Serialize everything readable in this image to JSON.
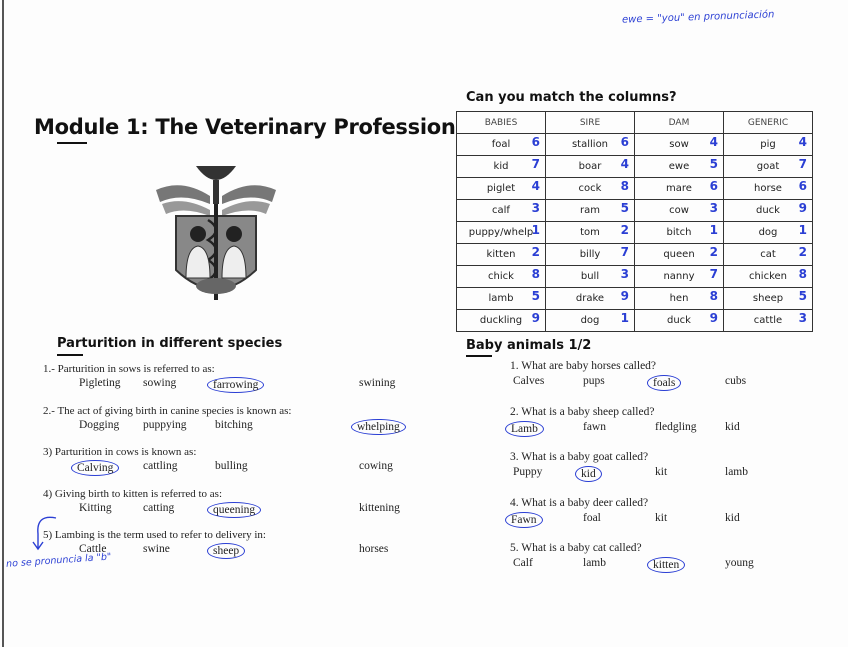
{
  "note": "ewe = \"you\" en pronunciación",
  "header": {
    "title": "Module 1: The Veterinary Profession"
  },
  "matching": {
    "title": "Can you match the columns?",
    "headers": [
      "BABIES",
      "SIRE",
      "DAM",
      "GENERIC"
    ],
    "rows": [
      [
        {
          "word": "foal",
          "mark": 6
        },
        {
          "word": "stallion",
          "mark": 6
        },
        {
          "word": "sow",
          "mark": 4
        },
        {
          "word": "pig",
          "mark": 4
        }
      ],
      [
        {
          "word": "kid",
          "mark": 7
        },
        {
          "word": "boar",
          "mark": 4
        },
        {
          "word": "ewe",
          "mark": 5
        },
        {
          "word": "goat",
          "mark": 7
        }
      ],
      [
        {
          "word": "piglet",
          "mark": 4
        },
        {
          "word": "cock",
          "mark": 8
        },
        {
          "word": "mare",
          "mark": 6
        },
        {
          "word": "horse",
          "mark": 6
        }
      ],
      [
        {
          "word": "calf",
          "mark": 3
        },
        {
          "word": "ram",
          "mark": 5
        },
        {
          "word": "cow",
          "mark": 3
        },
        {
          "word": "duck",
          "mark": 9
        }
      ],
      [
        {
          "word": "puppy/whelp",
          "mark": 1
        },
        {
          "word": "tom",
          "mark": 2
        },
        {
          "word": "bitch",
          "mark": 1
        },
        {
          "word": "dog",
          "mark": 1
        }
      ],
      [
        {
          "word": "kitten",
          "mark": 2
        },
        {
          "word": "billy",
          "mark": 7
        },
        {
          "word": "queen",
          "mark": 2
        },
        {
          "word": "cat",
          "mark": 2
        }
      ],
      [
        {
          "word": "chick",
          "mark": 8
        },
        {
          "word": "bull",
          "mark": 3
        },
        {
          "word": "nanny",
          "mark": 7
        },
        {
          "word": "chicken",
          "mark": 8
        }
      ],
      [
        {
          "word": "lamb",
          "mark": 5
        },
        {
          "word": "drake",
          "mark": 9
        },
        {
          "word": "hen",
          "mark": 8
        },
        {
          "word": "sheep",
          "mark": 5
        }
      ],
      [
        {
          "word": "duckling",
          "mark": 9
        },
        {
          "word": "dog",
          "mark": 1
        },
        {
          "word": "duck",
          "mark": 9
        },
        {
          "word": "cattle",
          "mark": 3
        }
      ]
    ]
  },
  "parturition": {
    "title": "Parturition in different species",
    "note": "no se pronuncia la \"b\"",
    "questions": [
      {
        "prompt": "1.- Parturition in sows is referred to as:",
        "options": [
          {
            "text": "Pigleting"
          },
          {
            "text": "sowing"
          },
          {
            "text": "farrowing",
            "circled": true
          },
          {
            "text": "swining"
          }
        ]
      },
      {
        "prompt": "2.- The act of giving birth in canine species is known as:",
        "options": [
          {
            "text": "Dogging"
          },
          {
            "text": "puppying"
          },
          {
            "text": "bitching"
          },
          {
            "text": "whelping",
            "circled": true
          }
        ]
      },
      {
        "prompt": "3) Parturition in cows is known as:",
        "options": [
          {
            "text": "Calving",
            "circled": true
          },
          {
            "text": "cattling"
          },
          {
            "text": "bulling"
          },
          {
            "text": "cowing"
          }
        ]
      },
      {
        "prompt": "4) Giving birth to kitten is referred to as:",
        "options": [
          {
            "text": "Kitting"
          },
          {
            "text": "catting"
          },
          {
            "text": "queening",
            "circled": true
          },
          {
            "text": "kittening"
          }
        ]
      },
      {
        "prompt": "5) Lambing is the term used to refer to delivery in:",
        "options": [
          {
            "text": "Cattle"
          },
          {
            "text": "swine"
          },
          {
            "text": "sheep",
            "circled": true
          },
          {
            "text": "horses"
          }
        ]
      }
    ]
  },
  "baby_animals": {
    "title": "Baby animals 1/2",
    "questions": [
      {
        "prompt": "1. What are baby horses called?",
        "options": [
          {
            "text": "Calves"
          },
          {
            "text": "pups"
          },
          {
            "text": "foals",
            "circled": true
          },
          {
            "text": "cubs"
          }
        ]
      },
      {
        "prompt": "2. What is a baby sheep called?",
        "options": [
          {
            "text": "Lamb",
            "circled": true
          },
          {
            "text": "fawn"
          },
          {
            "text": "fledgling"
          },
          {
            "text": "kid"
          }
        ]
      },
      {
        "prompt": "3. What is a baby goat called?",
        "options": [
          {
            "text": "Puppy"
          },
          {
            "text": "kid",
            "circled": true
          },
          {
            "text": "kit"
          },
          {
            "text": "lamb"
          }
        ]
      },
      {
        "prompt": "4. What is a baby deer called?",
        "options": [
          {
            "text": "Fawn",
            "circled": true
          },
          {
            "text": "foal"
          },
          {
            "text": "kit"
          },
          {
            "text": "kid"
          }
        ]
      },
      {
        "prompt": "5. What is a baby cat called?",
        "options": [
          {
            "text": "Calf"
          },
          {
            "text": "lamb"
          },
          {
            "text": "kitten",
            "circled": true
          },
          {
            "text": "young"
          }
        ]
      }
    ]
  }
}
